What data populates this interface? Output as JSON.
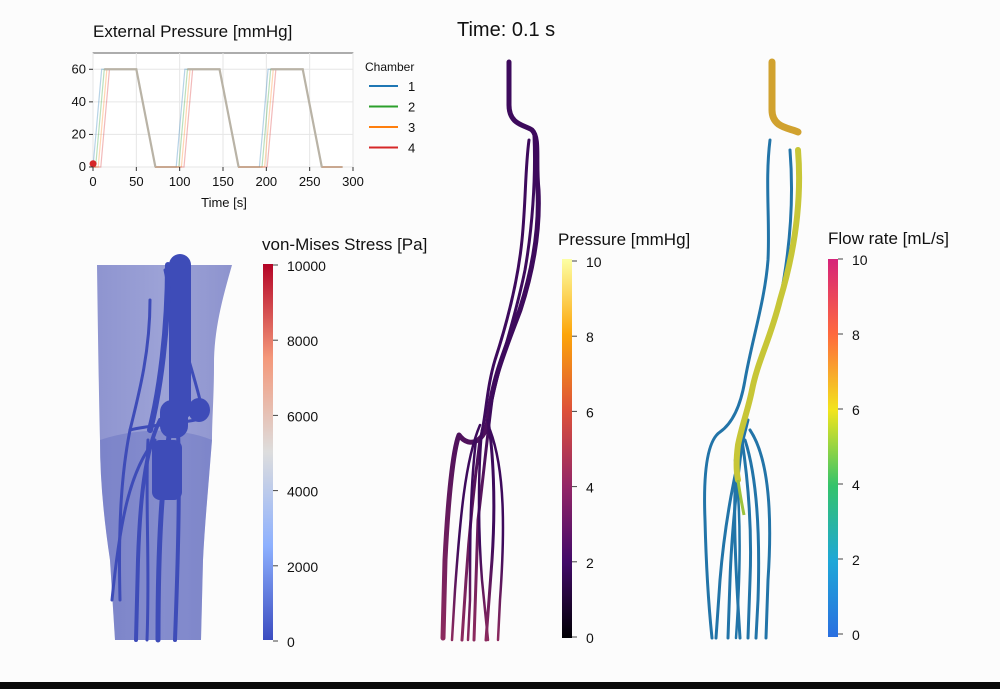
{
  "header": {
    "time_label": "Time: 0.1 s"
  },
  "chart_data": {
    "type": "line",
    "title": "External Pressure [mmHg]",
    "xlabel": "Time [s]",
    "ylabel": "",
    "xlim": [
      0,
      300
    ],
    "ylim": [
      0,
      70
    ],
    "xticks": [
      "0",
      "50",
      "100",
      "150",
      "200",
      "250",
      "300"
    ],
    "yticks": [
      "0",
      "20",
      "40",
      "60"
    ],
    "grid": true,
    "legend": {
      "title": "Chamber",
      "placement": "right"
    },
    "current_marker": {
      "x": 0.1,
      "y": 2
    },
    "series": [
      {
        "name": "1",
        "color": "#1f77b4",
        "x": [
          0,
          0,
          10,
          13,
          31,
          50,
          72,
          75,
          96,
          96,
          106,
          109,
          127,
          146,
          168,
          171,
          192,
          192,
          202,
          205,
          223,
          242,
          264,
          267,
          288
        ],
        "y": [
          0,
          0,
          60,
          60,
          60,
          60,
          0,
          0,
          0,
          0,
          60,
          60,
          60,
          60,
          0,
          0,
          0,
          0,
          60,
          60,
          60,
          60,
          0,
          0,
          0
        ]
      },
      {
        "name": "2",
        "color": "#2ca02c",
        "x": [
          0,
          3,
          13,
          16,
          31,
          50,
          72,
          78,
          96,
          99,
          109,
          112,
          127,
          146,
          168,
          174,
          192,
          195,
          205,
          208,
          223,
          242,
          264,
          270,
          288
        ],
        "y": [
          0,
          0,
          60,
          60,
          60,
          60,
          0,
          0,
          0,
          0,
          60,
          60,
          60,
          60,
          0,
          0,
          0,
          0,
          60,
          60,
          60,
          60,
          0,
          0,
          0
        ]
      },
      {
        "name": "3",
        "color": "#ff7f0e",
        "x": [
          0,
          6,
          16,
          19,
          31,
          50,
          72,
          81,
          96,
          102,
          112,
          115,
          127,
          146,
          168,
          177,
          192,
          198,
          208,
          211,
          223,
          242,
          264,
          273,
          288
        ],
        "y": [
          0,
          0,
          60,
          60,
          60,
          60,
          0,
          0,
          0,
          0,
          60,
          60,
          60,
          60,
          0,
          0,
          0,
          0,
          60,
          60,
          60,
          60,
          0,
          0,
          0
        ]
      },
      {
        "name": "4",
        "color": "#d62728",
        "x": [
          0,
          9,
          19,
          22,
          31,
          50,
          72,
          84,
          96,
          105,
          115,
          118,
          127,
          146,
          168,
          180,
          192,
          201,
          211,
          214,
          223,
          242,
          264,
          276,
          288
        ],
        "y": [
          0,
          0,
          60,
          60,
          60,
          60,
          0,
          0,
          0,
          0,
          60,
          60,
          60,
          60,
          0,
          0,
          0,
          0,
          60,
          60,
          60,
          60,
          0,
          0,
          0
        ]
      }
    ]
  },
  "panels": {
    "stress": {
      "title": "von-Mises Stress [Pa]",
      "ticks": [
        "10000",
        "8000",
        "6000",
        "4000",
        "2000",
        "0"
      ],
      "colors": [
        "#b40426",
        "#f4987a",
        "#dddddd",
        "#8db0fe",
        "#3b4cc0"
      ],
      "body_color": "#6f77c2",
      "vessel_color": "#3e4cb8"
    },
    "pressure": {
      "title": "Pressure [mmHg]",
      "ticks": [
        "10",
        "8",
        "6",
        "4",
        "2",
        "0"
      ],
      "colors": [
        "#fcffa4",
        "#fca50a",
        "#dd513a",
        "#932667",
        "#420a68",
        "#000004"
      ],
      "vessel_top_color": "#3d0a5c",
      "vessel_bottom_color": "#8c2a5e"
    },
    "flow": {
      "title": "Flow rate [mL/s]",
      "ticks": [
        "10",
        "8",
        "6",
        "4",
        "2",
        "0"
      ],
      "colors": [
        "#d6237a",
        "#ff6a3d",
        "#f2e51c",
        "#34c36b",
        "#1ea7d8",
        "#2a6fe0"
      ],
      "trunk_top_color": "#d1a22f",
      "trunk_main_color": "#c7c637",
      "branch_color": "#2274a8",
      "branch_highlight_color": "#9cc23c"
    }
  }
}
